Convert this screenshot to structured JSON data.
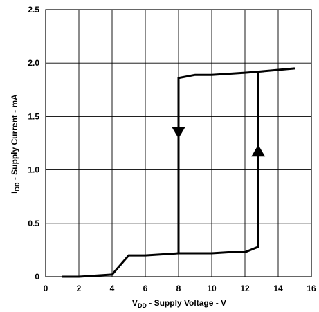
{
  "chart_data": {
    "type": "line",
    "title": "",
    "xlabel": {
      "main": "V",
      "sub": "DD",
      "rest": " - Supply Voltage - V"
    },
    "ylabel": {
      "main": "I",
      "sub": "DD",
      "rest": " - Supply Current - mA"
    },
    "xlim": [
      0,
      16
    ],
    "ylim": [
      0,
      2.5
    ],
    "x_ticks": [
      0,
      2,
      4,
      6,
      8,
      10,
      12,
      14,
      16
    ],
    "x_tick_labels": [
      "0",
      "2",
      "4",
      "6",
      "8",
      "10",
      "12",
      "14",
      "16"
    ],
    "y_ticks": [
      0,
      0.5,
      1.0,
      1.5,
      2.0,
      2.5
    ],
    "y_tick_labels": [
      "0",
      "0.5",
      "1.0",
      "1.5",
      "2.0",
      "2.5"
    ],
    "grid": true,
    "legend": "none",
    "series": [
      {
        "points": [
          [
            1,
            0
          ],
          [
            2,
            0
          ],
          [
            4,
            0.02
          ],
          [
            5,
            0.2
          ],
          [
            6,
            0.2
          ],
          [
            8,
            0.22
          ],
          [
            10,
            0.22
          ],
          [
            11,
            0.23
          ],
          [
            12,
            0.23
          ],
          [
            12.8,
            0.28
          ],
          [
            12.8,
            1.92
          ],
          [
            15,
            1.95
          ]
        ]
      },
      {
        "points": [
          [
            8,
            0.22
          ],
          [
            8,
            1.86
          ],
          [
            9,
            1.89
          ],
          [
            10,
            1.89
          ],
          [
            12,
            1.91
          ],
          [
            12.8,
            1.92
          ]
        ]
      }
    ],
    "annotations": [
      {
        "type": "arrow",
        "direction": "down",
        "x": 8,
        "y": 1.35
      },
      {
        "type": "arrow",
        "direction": "up",
        "x": 12.8,
        "y": 1.18
      }
    ]
  }
}
